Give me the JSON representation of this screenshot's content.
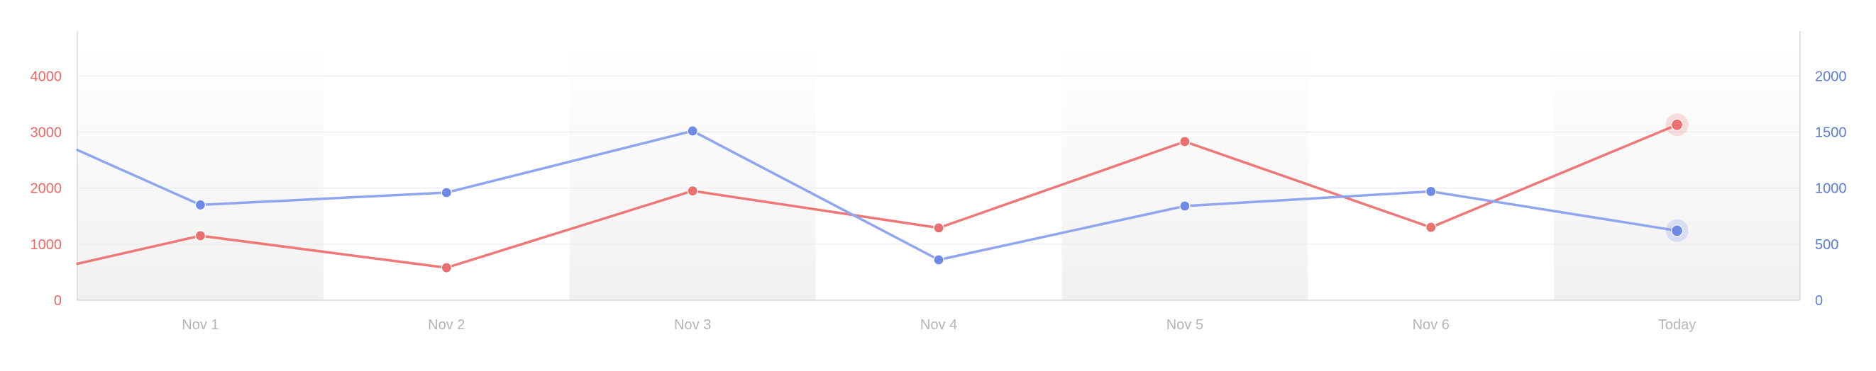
{
  "chart_data": {
    "type": "line",
    "categories": [
      "Nov 1",
      "Nov 2",
      "Nov 3",
      "Nov 4",
      "Nov 5",
      "Nov 6",
      "Today"
    ],
    "y_left": {
      "ticks": [
        0,
        1000,
        2000,
        3000,
        4000
      ],
      "tick_labels": [
        "0",
        "1000",
        "2000",
        "3000",
        "4000"
      ],
      "range": [
        0,
        4800
      ],
      "color": "#ee6666"
    },
    "y_right": {
      "ticks": [
        0,
        500,
        1000,
        1500,
        2000
      ],
      "tick_labels": [
        "0",
        "500",
        "1000",
        "1500",
        "2000"
      ],
      "range": [
        0,
        2400
      ],
      "color": "#5b7bdb"
    },
    "series": [
      {
        "axis": "left",
        "color": "#ee7777",
        "left_edge_value": 650,
        "values": [
          1150,
          580,
          1950,
          1290,
          2830,
          1300,
          3130
        ]
      },
      {
        "axis": "right",
        "color": "#8fa6ef",
        "left_edge_value": 1340,
        "values": [
          850,
          960,
          1510,
          360,
          840,
          970,
          620
        ]
      }
    ],
    "grid": true,
    "alternating_category_bands": true,
    "highlight_last_point": true
  },
  "colors": {
    "axis_line": "#d6d6d6",
    "grid_line": "#e9e9e9",
    "x_tick_text": "#b5b5b5",
    "band_fill": "#f3f3f3",
    "red_marker": "#ea6f6f",
    "blue_marker": "#6f8ae6"
  }
}
